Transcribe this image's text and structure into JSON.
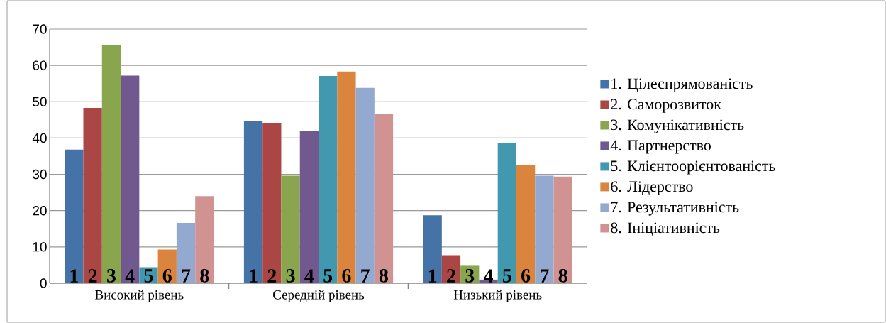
{
  "chart_data": {
    "type": "bar",
    "categories": [
      "Високий рівень",
      "Середній рівень",
      "Низький рівень"
    ],
    "series": [
      {
        "name": "1. Цілеспрямованість",
        "color": "#4572a7",
        "values": [
          36.8,
          44.7,
          18.7
        ]
      },
      {
        "name": "2. Саморозвиток",
        "color": "#aa4643",
        "values": [
          48.3,
          44.2,
          7.7
        ]
      },
      {
        "name": "3. Комунікативність",
        "color": "#89a54e",
        "values": [
          65.6,
          29.6,
          4.8
        ]
      },
      {
        "name": "4. Партнерство",
        "color": "#71588f",
        "values": [
          57.2,
          41.9,
          1.0
        ]
      },
      {
        "name": "5. Клієнтоорієнтованість",
        "color": "#4198af",
        "values": [
          4.4,
          57.1,
          38.5
        ]
      },
      {
        "name": "6. Лідерство",
        "color": "#db843d",
        "values": [
          9.3,
          58.3,
          32.5
        ]
      },
      {
        "name": "7. Результативність",
        "color": "#93a9cf",
        "values": [
          16.6,
          53.8,
          29.6
        ]
      },
      {
        "name": "8. Ініціативність",
        "color": "#d19392",
        "values": [
          24.0,
          46.6,
          29.4
        ]
      }
    ],
    "ylim": [
      0,
      70
    ],
    "yticks": [
      0,
      10,
      20,
      30,
      40,
      50,
      60,
      70
    ],
    "annotations": [
      "1",
      "2",
      "3",
      "4",
      "5",
      "6",
      "7",
      "8",
      "1",
      "2",
      "3",
      "4",
      "5",
      "6",
      "7",
      "8",
      "1",
      "2",
      "3",
      "4",
      "5",
      "6",
      "7",
      "8"
    ],
    "grid": "y",
    "legend": "right"
  }
}
